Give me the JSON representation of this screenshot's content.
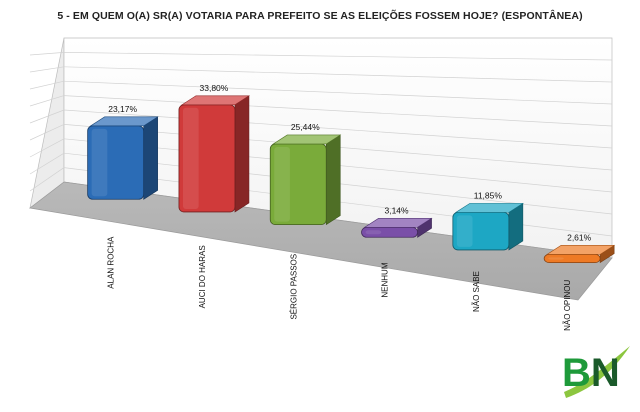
{
  "chart_data": {
    "type": "bar",
    "title": "5 - EM QUEM O(A) SR(A) VOTARIA PARA PREFEITO SE AS ELEIÇÕES FOSSEM HOJE? (ESPONTÂNEA)",
    "categories": [
      "ALAN ROCHA",
      "AUCI DO HARAS",
      "SÉRGIO PASSOS",
      "NENHUM",
      "NÃO SABE",
      "NÃO OPINOU"
    ],
    "values": [
      23.17,
      33.8,
      25.44,
      3.14,
      11.85,
      2.61
    ],
    "value_labels": [
      "23,17%",
      "33,80%",
      "25,44%",
      "3,14%",
      "11,85%",
      "2,61%"
    ],
    "colors": [
      "#2b6cb6",
      "#d03a3a",
      "#7aab3a",
      "#7a4fa8",
      "#1da7c4",
      "#ee7a25"
    ],
    "ylim": [
      0,
      40
    ],
    "grid": true,
    "legend": "none",
    "style": "3d"
  },
  "logo": {
    "text": "BN",
    "colors": {
      "b": "#1e9a3a",
      "n": "#1a5a2a",
      "swoosh": "#8cc63f"
    }
  }
}
